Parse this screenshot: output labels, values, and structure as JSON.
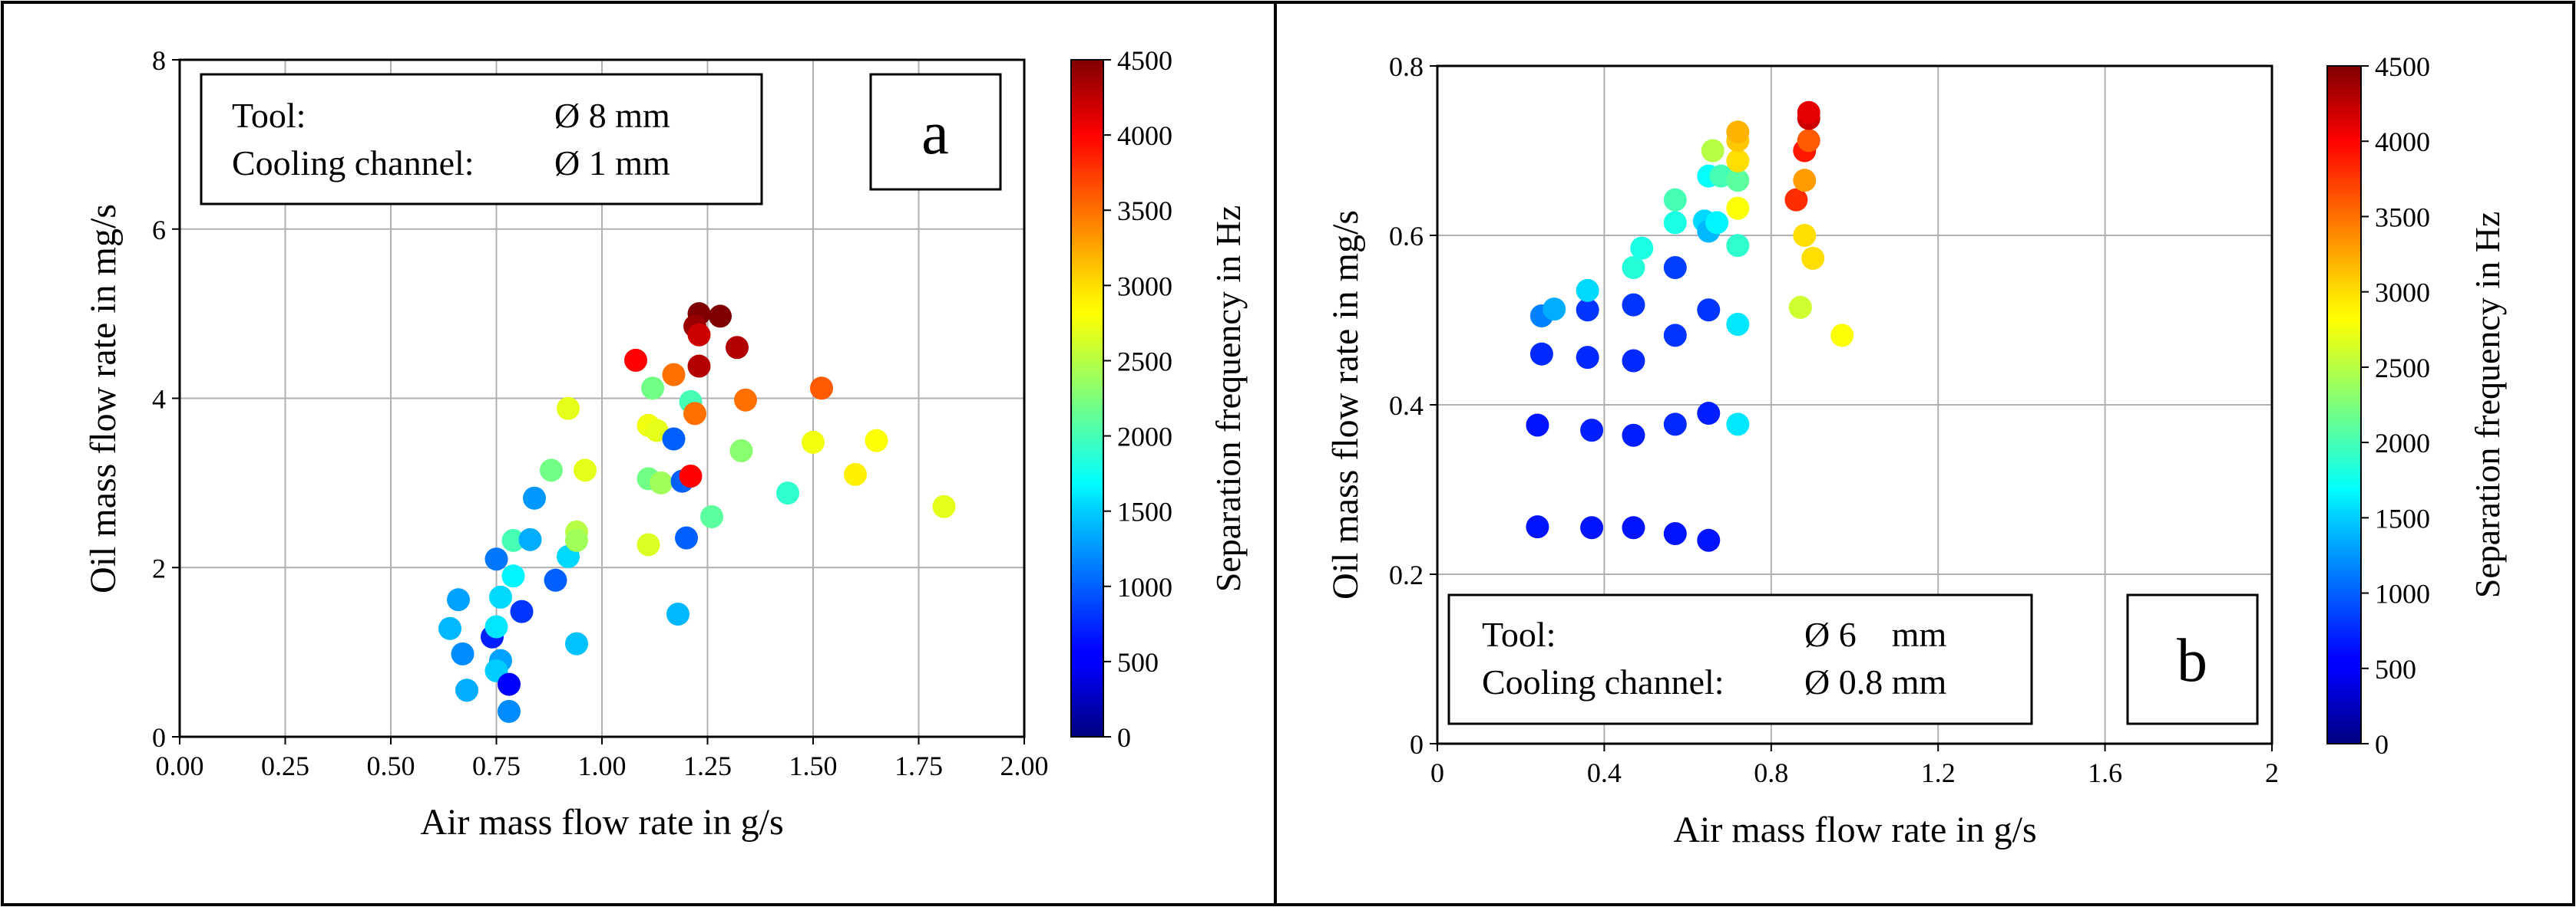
{
  "panels": [
    {
      "label": "a",
      "xlabel": "Air mass flow rate in g/s",
      "ylabel": "Oil mass flow rate in mg/s",
      "colorbar_label": "Separation frequency in Hz",
      "info": {
        "tool_label": "Tool:",
        "tool_value": "Ø 8 mm",
        "channel_label": "Cooling channel:",
        "channel_value": "Ø 1 mm"
      }
    },
    {
      "label": "b",
      "xlabel": "Air mass flow rate in g/s",
      "ylabel": "Oil mass flow rate in mg/s",
      "colorbar_label": "Separation frequency in Hz",
      "info": {
        "tool_label": "Tool:",
        "tool_value": "Ø 6    mm",
        "channel_label": "Cooling channel:",
        "channel_value": "Ø 0.8 mm"
      }
    }
  ],
  "chart_data": [
    {
      "type": "scatter",
      "title": "a",
      "xlabel": "Air mass flow rate in g/s",
      "ylabel": "Oil mass flow rate in mg/s",
      "xlim": [
        0,
        2
      ],
      "ylim": [
        0,
        8
      ],
      "xticks": [
        "0.00",
        "0.25",
        "0.50",
        "0.75",
        "1.00",
        "1.25",
        "1.50",
        "1.75",
        "2.00"
      ],
      "yticks": [
        "0",
        "2",
        "4",
        "6",
        "8"
      ],
      "grid": true,
      "colorbar": {
        "label": "Separation frequency in Hz",
        "range": [
          0,
          4500
        ],
        "ticks": [
          "0",
          "500",
          "1000",
          "1500",
          "2000",
          "2500",
          "3000",
          "3500",
          "4000",
          "4500"
        ]
      },
      "points": [
        {
          "x": 0.66,
          "y": 1.62,
          "c": 1300
        },
        {
          "x": 0.64,
          "y": 1.28,
          "c": 1400
        },
        {
          "x": 0.67,
          "y": 0.98,
          "c": 1200
        },
        {
          "x": 0.68,
          "y": 0.55,
          "c": 1350
        },
        {
          "x": 0.74,
          "y": 1.18,
          "c": 700
        },
        {
          "x": 0.75,
          "y": 2.1,
          "c": 1100
        },
        {
          "x": 0.76,
          "y": 1.65,
          "c": 1550
        },
        {
          "x": 0.75,
          "y": 1.3,
          "c": 1600
        },
        {
          "x": 0.76,
          "y": 0.9,
          "c": 1300
        },
        {
          "x": 0.75,
          "y": 0.78,
          "c": 1500
        },
        {
          "x": 0.78,
          "y": 0.62,
          "c": 500
        },
        {
          "x": 0.78,
          "y": 0.3,
          "c": 1200
        },
        {
          "x": 0.79,
          "y": 1.9,
          "c": 1650
        },
        {
          "x": 0.79,
          "y": 2.32,
          "c": 2000
        },
        {
          "x": 0.81,
          "y": 1.48,
          "c": 800
        },
        {
          "x": 0.83,
          "y": 2.33,
          "c": 1350
        },
        {
          "x": 0.84,
          "y": 2.82,
          "c": 1250
        },
        {
          "x": 0.88,
          "y": 3.15,
          "c": 2200
        },
        {
          "x": 0.89,
          "y": 1.85,
          "c": 1000
        },
        {
          "x": 0.92,
          "y": 3.88,
          "c": 2700
        },
        {
          "x": 0.92,
          "y": 2.13,
          "c": 1550
        },
        {
          "x": 0.94,
          "y": 2.42,
          "c": 2500
        },
        {
          "x": 0.94,
          "y": 2.32,
          "c": 2400
        },
        {
          "x": 0.96,
          "y": 3.15,
          "c": 2700
        },
        {
          "x": 0.94,
          "y": 1.1,
          "c": 1450
        },
        {
          "x": 1.08,
          "y": 4.45,
          "c": 4000
        },
        {
          "x": 1.11,
          "y": 3.68,
          "c": 2750
        },
        {
          "x": 1.12,
          "y": 4.12,
          "c": 2200
        },
        {
          "x": 1.13,
          "y": 3.62,
          "c": 2700
        },
        {
          "x": 1.11,
          "y": 3.05,
          "c": 2200
        },
        {
          "x": 1.14,
          "y": 3.0,
          "c": 2400
        },
        {
          "x": 1.11,
          "y": 2.27,
          "c": 2650
        },
        {
          "x": 1.17,
          "y": 4.28,
          "c": 3500
        },
        {
          "x": 1.17,
          "y": 3.52,
          "c": 1000
        },
        {
          "x": 1.19,
          "y": 3.02,
          "c": 1000
        },
        {
          "x": 1.2,
          "y": 2.35,
          "c": 1000
        },
        {
          "x": 1.18,
          "y": 1.45,
          "c": 1400
        },
        {
          "x": 1.21,
          "y": 3.96,
          "c": 2000
        },
        {
          "x": 1.21,
          "y": 3.08,
          "c": 4000
        },
        {
          "x": 1.22,
          "y": 3.82,
          "c": 3500
        },
        {
          "x": 1.23,
          "y": 5.0,
          "c": 4500
        },
        {
          "x": 1.22,
          "y": 4.85,
          "c": 4400
        },
        {
          "x": 1.23,
          "y": 4.75,
          "c": 4200
        },
        {
          "x": 1.23,
          "y": 4.38,
          "c": 4300
        },
        {
          "x": 1.28,
          "y": 4.97,
          "c": 4500
        },
        {
          "x": 1.26,
          "y": 2.6,
          "c": 2100
        },
        {
          "x": 1.32,
          "y": 4.6,
          "c": 4300
        },
        {
          "x": 1.33,
          "y": 3.38,
          "c": 2300
        },
        {
          "x": 1.34,
          "y": 3.98,
          "c": 3500
        },
        {
          "x": 1.44,
          "y": 2.88,
          "c": 1900
        },
        {
          "x": 1.5,
          "y": 3.48,
          "c": 2750
        },
        {
          "x": 1.52,
          "y": 4.12,
          "c": 3600
        },
        {
          "x": 1.6,
          "y": 3.1,
          "c": 2900
        },
        {
          "x": 1.65,
          "y": 3.5,
          "c": 2800
        },
        {
          "x": 1.81,
          "y": 2.72,
          "c": 2700
        }
      ]
    },
    {
      "type": "scatter",
      "title": "b",
      "xlabel": "Air mass flow rate in g/s",
      "ylabel": "Oil mass flow rate in mg/s",
      "xlim": [
        0,
        2
      ],
      "ylim": [
        0,
        0.8
      ],
      "xticks": [
        "0",
        "0.4",
        "0.8",
        "1.2",
        "1.6",
        "2"
      ],
      "yticks": [
        "0",
        "0.2",
        "0.4",
        "0.6",
        "0.8"
      ],
      "grid": true,
      "colorbar": {
        "label": "Separation frequency in Hz",
        "range": [
          0,
          4500
        ],
        "ticks": [
          "0",
          "500",
          "1000",
          "1500",
          "2000",
          "2500",
          "3000",
          "3500",
          "4000",
          "4500"
        ]
      },
      "points": [
        {
          "x": 0.24,
          "y": 0.256,
          "c": 650
        },
        {
          "x": 0.37,
          "y": 0.255,
          "c": 650
        },
        {
          "x": 0.47,
          "y": 0.255,
          "c": 650
        },
        {
          "x": 0.57,
          "y": 0.248,
          "c": 650
        },
        {
          "x": 0.65,
          "y": 0.24,
          "c": 650
        },
        {
          "x": 0.24,
          "y": 0.376,
          "c": 650
        },
        {
          "x": 0.37,
          "y": 0.37,
          "c": 700
        },
        {
          "x": 0.47,
          "y": 0.364,
          "c": 700
        },
        {
          "x": 0.57,
          "y": 0.377,
          "c": 750
        },
        {
          "x": 0.65,
          "y": 0.39,
          "c": 700
        },
        {
          "x": 0.72,
          "y": 0.377,
          "c": 1600
        },
        {
          "x": 0.25,
          "y": 0.46,
          "c": 750
        },
        {
          "x": 0.36,
          "y": 0.456,
          "c": 750
        },
        {
          "x": 0.47,
          "y": 0.452,
          "c": 750
        },
        {
          "x": 0.57,
          "y": 0.482,
          "c": 800
        },
        {
          "x": 0.72,
          "y": 0.495,
          "c": 1600
        },
        {
          "x": 0.25,
          "y": 0.505,
          "c": 1150
        },
        {
          "x": 0.28,
          "y": 0.513,
          "c": 1350
        },
        {
          "x": 0.36,
          "y": 0.512,
          "c": 800
        },
        {
          "x": 0.36,
          "y": 0.535,
          "c": 1550
        },
        {
          "x": 0.47,
          "y": 0.518,
          "c": 800
        },
        {
          "x": 0.47,
          "y": 0.562,
          "c": 1850
        },
        {
          "x": 0.49,
          "y": 0.585,
          "c": 1800
        },
        {
          "x": 0.57,
          "y": 0.562,
          "c": 850
        },
        {
          "x": 0.65,
          "y": 0.512,
          "c": 800
        },
        {
          "x": 0.57,
          "y": 0.615,
          "c": 1800
        },
        {
          "x": 0.57,
          "y": 0.642,
          "c": 2000
        },
        {
          "x": 0.64,
          "y": 0.617,
          "c": 1550
        },
        {
          "x": 0.65,
          "y": 0.605,
          "c": 1400
        },
        {
          "x": 0.67,
          "y": 0.615,
          "c": 1650
        },
        {
          "x": 0.65,
          "y": 0.67,
          "c": 1700
        },
        {
          "x": 0.66,
          "y": 0.7,
          "c": 2500
        },
        {
          "x": 0.68,
          "y": 0.67,
          "c": 2000
        },
        {
          "x": 0.72,
          "y": 0.588,
          "c": 1900
        },
        {
          "x": 0.72,
          "y": 0.632,
          "c": 2800
        },
        {
          "x": 0.72,
          "y": 0.665,
          "c": 2100
        },
        {
          "x": 0.72,
          "y": 0.688,
          "c": 3000
        },
        {
          "x": 0.72,
          "y": 0.712,
          "c": 3100
        },
        {
          "x": 0.72,
          "y": 0.722,
          "c": 3200
        },
        {
          "x": 0.86,
          "y": 0.642,
          "c": 3800
        },
        {
          "x": 0.87,
          "y": 0.515,
          "c": 2600
        },
        {
          "x": 0.88,
          "y": 0.6,
          "c": 3000
        },
        {
          "x": 0.88,
          "y": 0.665,
          "c": 3300
        },
        {
          "x": 0.88,
          "y": 0.7,
          "c": 3900
        },
        {
          "x": 0.89,
          "y": 0.712,
          "c": 3600
        },
        {
          "x": 0.89,
          "y": 0.738,
          "c": 4200
        },
        {
          "x": 0.89,
          "y": 0.745,
          "c": 4100
        },
        {
          "x": 0.9,
          "y": 0.573,
          "c": 3000
        },
        {
          "x": 0.97,
          "y": 0.482,
          "c": 2800
        }
      ]
    }
  ]
}
